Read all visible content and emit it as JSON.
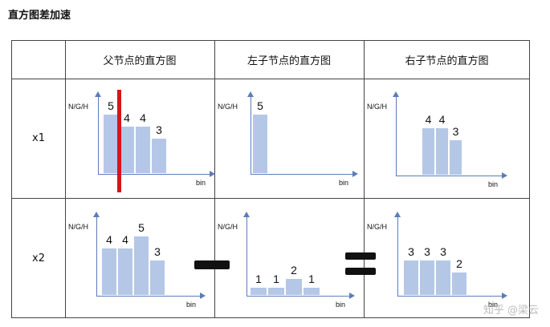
{
  "title": "直方图差加速",
  "columns": [
    "父节点的直方图",
    "左子节点的直方图",
    "右子节点的直方图"
  ],
  "rows": [
    "x1",
    "x2"
  ],
  "y_label": "N/G/H",
  "x_label": "bin",
  "watermark": "知乎 @梁云",
  "chart_data": [
    {
      "type": "bar",
      "panel": "x1-parent",
      "ylabel": "N/G/H",
      "xlabel": "bin",
      "values": [
        5,
        4,
        4,
        3
      ],
      "split_after_index": 0
    },
    {
      "type": "bar",
      "panel": "x1-left",
      "ylabel": "N/G/H",
      "xlabel": "bin",
      "values": [
        5
      ]
    },
    {
      "type": "bar",
      "panel": "x1-right",
      "ylabel": "N/G/H",
      "xlabel": "bin",
      "values": [
        4,
        4,
        3
      ]
    },
    {
      "type": "bar",
      "panel": "x2-parent",
      "ylabel": "N/G/H",
      "xlabel": "bin",
      "values": [
        4,
        4,
        5,
        3
      ]
    },
    {
      "type": "bar",
      "panel": "x2-left",
      "ylabel": "N/G/H",
      "xlabel": "bin",
      "values": [
        1,
        1,
        2,
        1
      ]
    },
    {
      "type": "bar",
      "panel": "x2-right",
      "ylabel": "N/G/H",
      "xlabel": "bin",
      "values": [
        3,
        3,
        3,
        2
      ]
    }
  ],
  "colors": {
    "bar": "#b4c7e7",
    "axis": "#5b7db8",
    "split": "#d7141a"
  }
}
